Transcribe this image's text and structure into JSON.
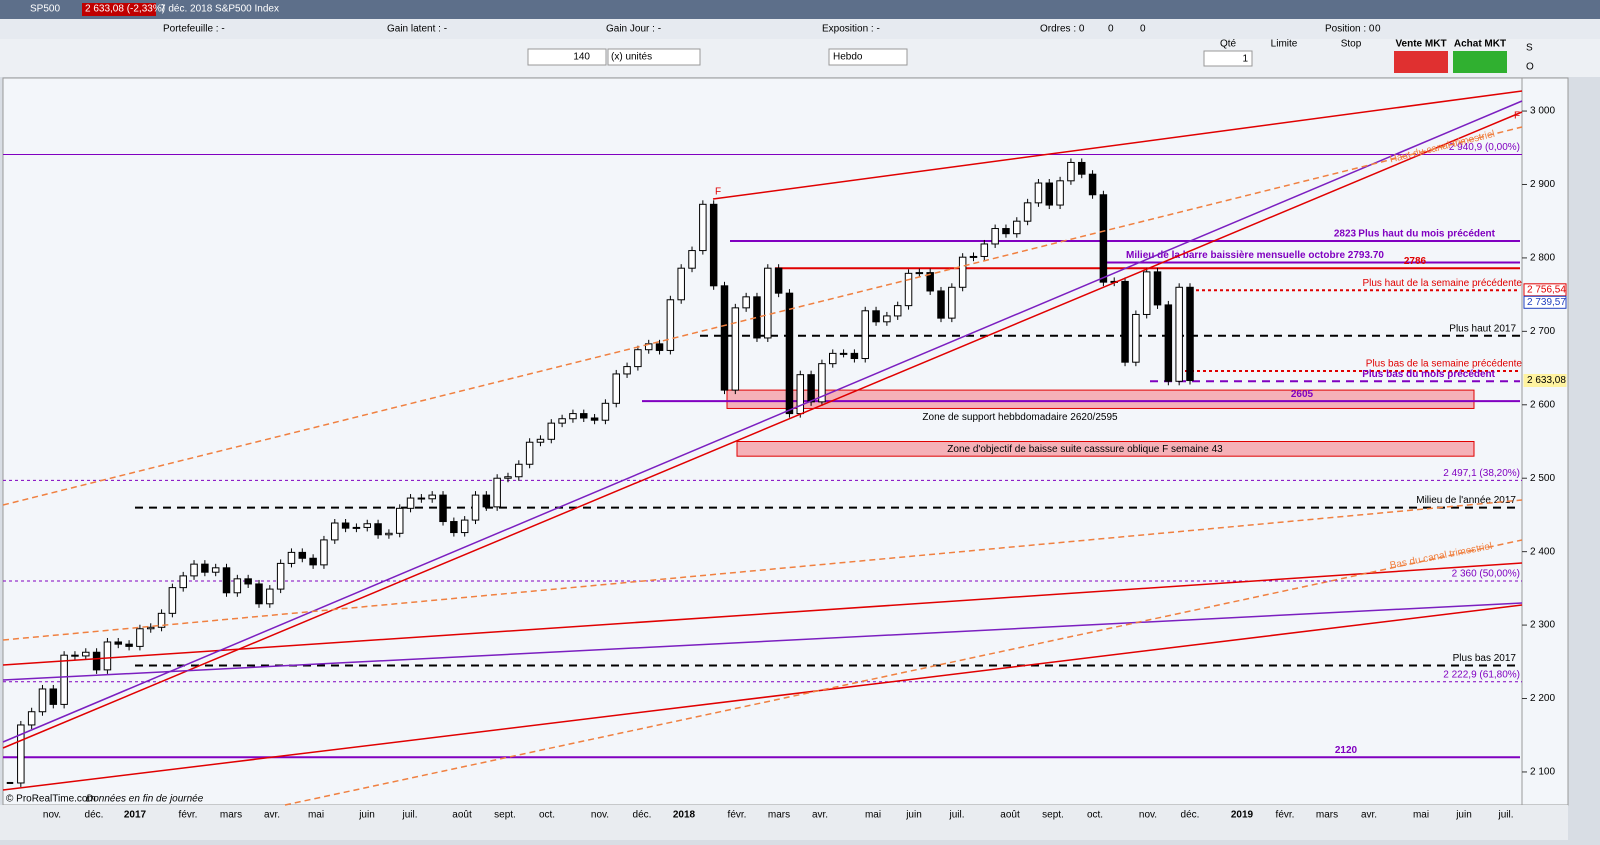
{
  "header": {
    "symbol": "SP500",
    "quote": "2 633,08 (-2,33%)",
    "description": "7 déc. 2018 S&P500 Index"
  },
  "account": {
    "portfolio": "Portefeuille : -",
    "latent": "Gain latent : -",
    "day": "Gain Jour : -",
    "exposure": "Exposition : -",
    "orders": "Ordres : 0",
    "orders_a": "0",
    "orders_b": "0",
    "position": "Position : 0",
    "position_a": "0"
  },
  "toolbar": {
    "quantity": "140",
    "unit": "(x) unités",
    "period": "Hebdo",
    "qty_label": "Qté",
    "qty": "1",
    "limit": "Limite",
    "stop": "Stop",
    "sell": "Vente MKT",
    "buy": "Achat MKT",
    "s": "S",
    "o": "O"
  },
  "footer": {
    "copyright": "© ProRealTime.com",
    "note": "Données en fin de journée"
  },
  "chart_data": {
    "type": "candlestick",
    "categories_x": [
      "nov.",
      "déc.",
      "2017",
      "févr.",
      "mars",
      "avr.",
      "mai",
      "juin",
      "juil.",
      "août",
      "sept.",
      "oct.",
      "nov.",
      "déc.",
      "2018",
      "févr.",
      "mars",
      "avr.",
      "mai",
      "juin",
      "juil.",
      "août",
      "sept.",
      "oct.",
      "nov.",
      "déc.",
      "2019",
      "févr.",
      "mars",
      "avr.",
      "mai",
      "juin",
      "juil."
    ],
    "close": [
      2085,
      2164,
      2182,
      2213,
      2192,
      2259,
      2258,
      2263,
      2239,
      2277,
      2274,
      2271,
      2295,
      2297,
      2316,
      2351,
      2367,
      2383,
      2372,
      2378,
      2344,
      2363,
      2356,
      2329,
      2349,
      2384,
      2399,
      2391,
      2382,
      2416,
      2439,
      2432,
      2433,
      2438,
      2423,
      2425,
      2459,
      2473,
      2472,
      2477,
      2441,
      2426,
      2443,
      2477,
      2461,
      2500,
      2502,
      2519,
      2549,
      2553,
      2575,
      2581,
      2588,
      2582,
      2579,
      2602,
      2642,
      2652,
      2675,
      2683,
      2674,
      2743,
      2786,
      2810,
      2873,
      2762,
      2620,
      2732,
      2747,
      2691,
      2786,
      2752,
      2588,
      2641,
      2604,
      2656,
      2670,
      2670,
      2663,
      2728,
      2713,
      2721,
      2735,
      2779,
      2780,
      2755,
      2718,
      2760,
      2801,
      2802,
      2819,
      2840,
      2833,
      2850,
      2875,
      2902,
      2872,
      2905,
      2930,
      2914,
      2886,
      2767,
      2768,
      2658,
      2723,
      2781,
      2736,
      2632,
      2760,
      2633
    ],
    "ylim": [
      2055,
      3045
    ],
    "yticks": [
      {
        "value": 3000,
        "label": "3 000"
      },
      {
        "value": 2900,
        "label": "2 900"
      },
      {
        "value": 2800,
        "label": "2 800"
      },
      {
        "value": 2700,
        "label": "2 700"
      },
      {
        "value": 2600,
        "label": "2 600"
      },
      {
        "value": 2500,
        "label": "2 500"
      },
      {
        "value": 2400,
        "label": "2 400"
      },
      {
        "value": 2300,
        "label": "2 300"
      },
      {
        "value": 2200,
        "label": "2 200"
      },
      {
        "value": 2100,
        "label": "2 100"
      }
    ],
    "levels": [
      {
        "name": "Plus haut du mois précédent",
        "value": 2823,
        "value_label": "2823",
        "color": "#8000c0"
      },
      {
        "name": "Milieu de la barre baissière mensuelle octobre 2793.70",
        "value": 2793.7,
        "color": "#8000c0"
      },
      {
        "value": 2786,
        "value_label": "2786",
        "color": "#e00000"
      },
      {
        "name": "Plus haut de la semaine précédente",
        "value": 2756,
        "color": "#e00000"
      },
      {
        "name": "Plus haut 2017",
        "value": 2694,
        "color": "#000000"
      },
      {
        "name": "Plus bas de la semaine précédente",
        "value": 2646,
        "color": "#e00000"
      },
      {
        "name": "Plus bas du mois précédent",
        "value": 2632,
        "color": "#8000c0"
      },
      {
        "value": 2605,
        "value_label": "2605",
        "color": "#8000c0"
      },
      {
        "name": "Milieu de l'année 2017",
        "value": 2460,
        "color": "#000000"
      },
      {
        "name": "Plus bas 2017",
        "value": 2245,
        "color": "#000000"
      },
      {
        "value": 2120,
        "value_label": "2120",
        "color": "#8000c0"
      },
      {
        "value": 2940.9,
        "value_label": "2 940,9 (0,00%)",
        "color": "#8000c0"
      },
      {
        "value": 2497.1,
        "value_label": "2 497,1 (38,20%)",
        "color": "#8000c0"
      },
      {
        "value": 2360,
        "value_label": "2 360 (50,00%)",
        "color": "#8000c0"
      },
      {
        "value": 2222.9,
        "value_label": "2 222,9 (61,80%)",
        "color": "#8000c0"
      }
    ],
    "zones": [
      {
        "name": "Zone de support hebbdomadaire 2620/2595",
        "high": 2620,
        "low": 2595
      },
      {
        "name": "Zone d'objectif de baisse suite casssure oblique F semaine 43",
        "high": 2550,
        "low": 2530
      }
    ],
    "price_tags": [
      {
        "value": 2756.54,
        "label": "2 756,54",
        "color": "#e00000"
      },
      {
        "value": 2739.57,
        "label": "2 739,57",
        "color": "#2040c0"
      },
      {
        "value": 2633.08,
        "label": "2 633,08",
        "color": "#fff3a0"
      }
    ],
    "annotations": {
      "top_channel": "Haut du canal trimestriel",
      "bottom_channel": "Bas du canal trimestriel",
      "f1": "F",
      "f2": "F"
    }
  }
}
